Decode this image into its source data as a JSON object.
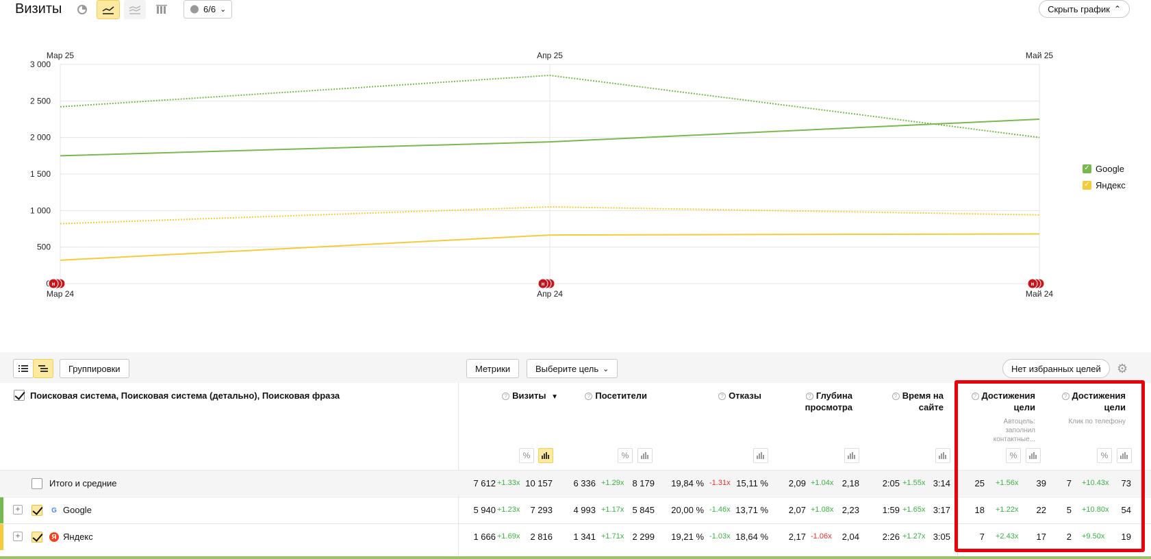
{
  "header": {
    "title": "Визиты",
    "segment_label": "6/6",
    "hide_chart_label": "Скрыть график"
  },
  "chart_data": {
    "type": "line",
    "x": [
      "Мар 24",
      "Апр 24",
      "Май 24"
    ],
    "x_top": [
      "Мар 25",
      "Апр 25",
      "Май 25"
    ],
    "ylim": [
      0,
      3000
    ],
    "yticks": [
      "3 000",
      "2 500",
      "2 000",
      "1 500",
      "1 000",
      "500",
      "0"
    ],
    "grid": true,
    "legend_position": "right",
    "series": [
      {
        "name": "Google",
        "color": "#79b84f",
        "values": [
          1750,
          1940,
          2250
        ],
        "compare_values": [
          2420,
          2850,
          2000
        ]
      },
      {
        "name": "Яндекс",
        "color": "#f3cb3e",
        "values": [
          320,
          665,
          680
        ],
        "compare_values": [
          820,
          1050,
          940
        ]
      }
    ],
    "event_marker_label": "н"
  },
  "toolbar": {
    "groupings_label": "Группировки",
    "metrics_label": "Метрики",
    "goal_select_label": "Выберите цель",
    "no_fav_goals_label": "Нет избранных целей"
  },
  "table": {
    "dimension_header": "Поисковая система, Поисковая система (детально), Поисковая фраза",
    "columns": {
      "visits": "Визиты",
      "visits_sort": "▼",
      "visitors": "Посетители",
      "bounces": "Отказы",
      "depth_1": "Глубина",
      "depth_2": "просмотра",
      "time_1": "Время на",
      "time_2": "сайте",
      "goal1_1": "Достижения",
      "goal1_2": "цели",
      "goal1_sub_1": "Автоцель:",
      "goal1_sub_2": "заполнил",
      "goal1_sub_3": "контактные...",
      "goal2_1": "Достижения",
      "goal2_2": "цели",
      "goal2_sub": "Клик по телефону"
    },
    "rows": [
      {
        "label": "Итого и средние",
        "visits": [
          "7 612",
          "+1.33x",
          "10 157"
        ],
        "visitors": [
          "6 336",
          "+1.29x",
          "8 179"
        ],
        "bounces": [
          "19,84 %",
          "-1.31x",
          "15,11 %"
        ],
        "depth": [
          "2,09",
          "+1.04x",
          "2,18"
        ],
        "time": [
          "2:05",
          "+1.55x",
          "3:14"
        ],
        "goal1": [
          "25",
          "+1.56x",
          "39"
        ],
        "goal2": [
          "7",
          "+10.43x",
          "73"
        ]
      },
      {
        "label": "Google",
        "visits": [
          "5 940",
          "+1.23x",
          "7 293"
        ],
        "visitors": [
          "4 993",
          "+1.17x",
          "5 845"
        ],
        "bounces": [
          "20,00 %",
          "-1.46x",
          "13,71 %"
        ],
        "depth": [
          "2,07",
          "+1.08x",
          "2,23"
        ],
        "time": [
          "1:59",
          "+1.65x",
          "3:17"
        ],
        "goal1": [
          "18",
          "+1.22x",
          "22"
        ],
        "goal2": [
          "5",
          "+10.80x",
          "54"
        ]
      },
      {
        "label": "Яндекс",
        "visits": [
          "1 666",
          "+1.69x",
          "2 816"
        ],
        "visitors": [
          "1 341",
          "+1.71x",
          "2 299"
        ],
        "bounces": [
          "19,21 %",
          "-1.03x",
          "18,64 %"
        ],
        "depth": [
          "2,17",
          "-1.06x",
          "2,04"
        ],
        "time": [
          "2:26",
          "+1.27x",
          "3:05"
        ],
        "goal1": [
          "7",
          "+2.43x",
          "17"
        ],
        "goal2": [
          "2",
          "+9.50x",
          "19"
        ]
      }
    ]
  },
  "colors": {
    "accent_yellow": "#fde9a0",
    "google_green": "#79b84f",
    "yandex_yellow": "#f3cb3e",
    "positive": "#3cb043",
    "negative": "#e0302a",
    "highlight_red": "#e8000b"
  }
}
